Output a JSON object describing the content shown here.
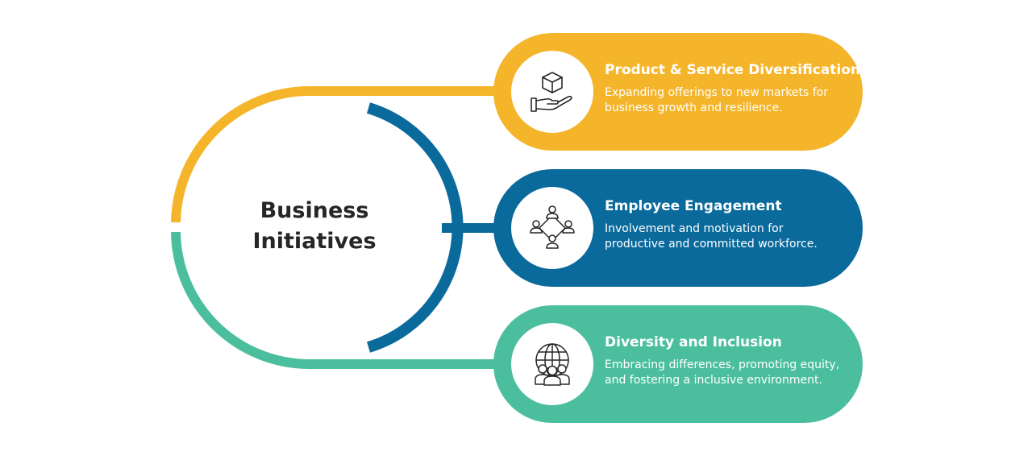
{
  "center": {
    "title_line1": "Business",
    "title_line2": "Initiatives"
  },
  "colors": {
    "yellow": "#F5B52B",
    "blue": "#0A6A9C",
    "green": "#4BBF9D",
    "title_text": "#262626",
    "white": "#FFFFFF"
  },
  "items": [
    {
      "title": "Product & Service Diversification",
      "desc_line1": "Expanding offerings to new markets for",
      "desc_line2": "business growth and resilience.",
      "icon": "box-in-hand-icon",
      "color": "#F5B52B"
    },
    {
      "title": "Employee Engagement",
      "desc_line1": "Involvement and motivation for",
      "desc_line2": "productive and committed workforce.",
      "icon": "team-network-icon",
      "color": "#0A6A9C"
    },
    {
      "title": "Diversity and Inclusion",
      "desc_line1": "Embracing differences, promoting equity,",
      "desc_line2": "and fostering a inclusive environment.",
      "icon": "globe-people-icon",
      "color": "#4BBF9D"
    }
  ]
}
